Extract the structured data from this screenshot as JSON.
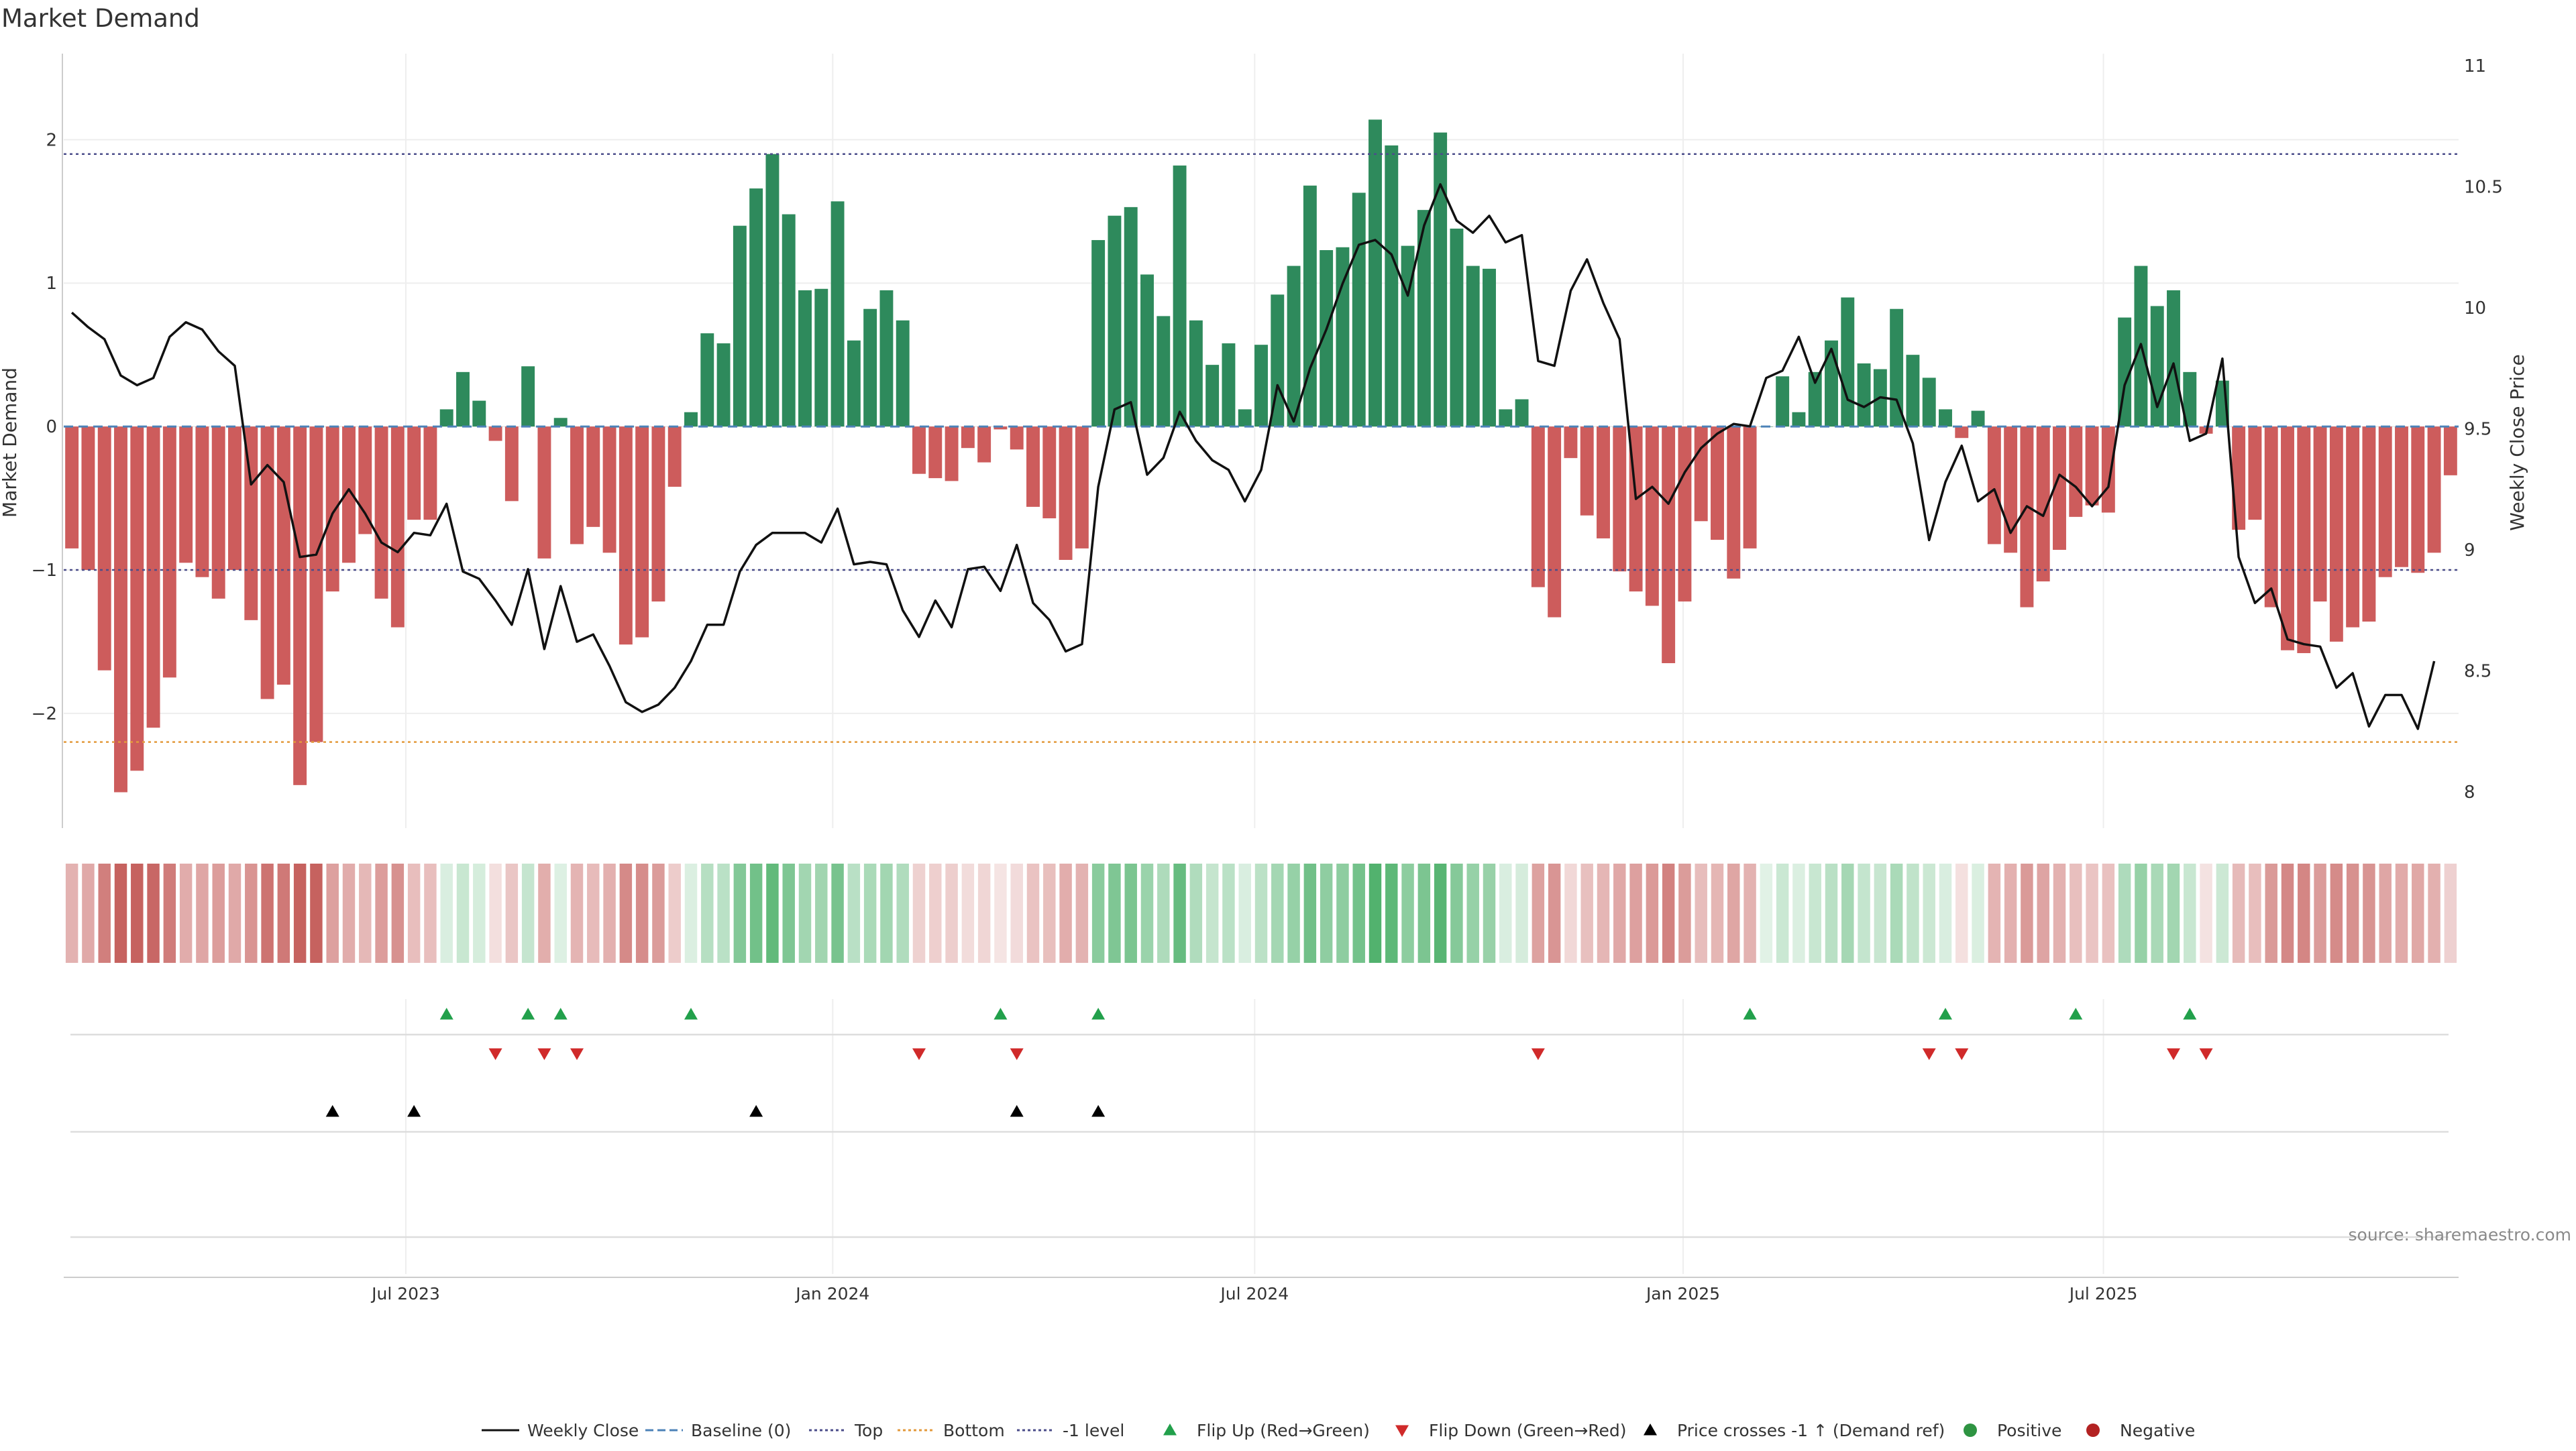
{
  "chart_data": {
    "type": "bar",
    "title": "Market Demand",
    "ylabel": "Market Demand",
    "y2label": "Weekly Close Price",
    "source": "source: sharemaestro.com",
    "ylim": [
      -2.8,
      2.6
    ],
    "y2lim": [
      7.85,
      11.05
    ],
    "yticks": [
      2,
      1,
      0,
      -1,
      -2
    ],
    "ytick_labels": [
      "2",
      "1",
      "0",
      "−1",
      "−2"
    ],
    "y2ticks": [
      11,
      10.5,
      10,
      9.5,
      9,
      8.5,
      8
    ],
    "y2tick_labels": [
      "11",
      "10.5",
      "10",
      "9.5",
      "9",
      "8.5",
      "8"
    ],
    "xticks": [
      {
        "week": 20.5,
        "label": "Jul 2023"
      },
      {
        "week": 46.7,
        "label": "Jan 2024"
      },
      {
        "week": 72.6,
        "label": "Jul 2024"
      },
      {
        "week": 98.9,
        "label": "Jan 2025"
      },
      {
        "week": 124.7,
        "label": "Jul 2025"
      }
    ],
    "reference_lines": {
      "top": 1.9,
      "bottom": -2.2,
      "minus_one": -1.0,
      "baseline": 0
    },
    "demand": [
      -0.85,
      -1.0,
      -1.7,
      -2.55,
      -2.4,
      -2.1,
      -1.75,
      -0.95,
      -1.05,
      -1.2,
      -1.0,
      -1.35,
      -1.9,
      -1.8,
      -2.5,
      -2.2,
      -1.15,
      -0.95,
      -0.75,
      -1.2,
      -1.4,
      -0.65,
      -0.65,
      0.12,
      0.38,
      0.18,
      -0.1,
      -0.52,
      0.42,
      -0.92,
      0.06,
      -0.82,
      -0.7,
      -0.88,
      -1.52,
      -1.47,
      -1.22,
      -0.42,
      0.1,
      0.65,
      0.58,
      1.4,
      1.66,
      1.9,
      1.48,
      0.95,
      0.96,
      1.57,
      0.6,
      0.82,
      0.95,
      0.74,
      -0.33,
      -0.36,
      -0.38,
      -0.15,
      -0.25,
      -0.02,
      -0.16,
      -0.56,
      -0.64,
      -0.93,
      -0.85,
      1.3,
      1.47,
      1.53,
      1.06,
      0.77,
      1.82,
      0.74,
      0.43,
      0.58,
      0.12,
      0.57,
      0.92,
      1.12,
      1.68,
      1.23,
      1.25,
      1.63,
      2.14,
      1.96,
      1.26,
      1.51,
      2.05,
      1.38,
      1.12,
      1.1,
      0.12,
      0.19,
      -1.12,
      -1.33,
      -0.22,
      -0.62,
      -0.78,
      -1.01,
      -1.15,
      -1.25,
      -1.65,
      -1.22,
      -0.66,
      -0.79,
      -1.06,
      -0.85,
      0.0,
      0.35,
      0.1,
      0.38,
      0.6,
      0.9,
      0.44,
      0.4,
      0.82,
      0.5,
      0.34,
      0.12,
      -0.08,
      0.11,
      -0.82,
      -0.88,
      -1.26,
      -1.08,
      -0.86,
      -0.63,
      -0.55,
      -0.6,
      0.76,
      1.12,
      0.84,
      0.95,
      0.38,
      -0.05,
      0.32,
      -0.72,
      -0.65,
      -1.26,
      -1.56,
      -1.58,
      -1.22,
      -1.5,
      -1.4,
      -1.36,
      -1.05,
      -0.98,
      -1.02,
      -0.88,
      -0.34
    ],
    "price": [
      9.98,
      9.92,
      9.87,
      9.72,
      9.68,
      9.71,
      9.88,
      9.94,
      9.91,
      9.82,
      9.76,
      9.27,
      9.35,
      9.28,
      8.97,
      8.98,
      9.15,
      9.25,
      9.15,
      9.03,
      8.99,
      9.07,
      9.06,
      9.19,
      8.91,
      8.88,
      8.79,
      8.69,
      8.92,
      8.59,
      8.85,
      8.62,
      8.65,
      8.52,
      8.37,
      8.33,
      8.36,
      8.43,
      8.54,
      8.69,
      8.69,
      8.91,
      9.02,
      9.07,
      9.07,
      9.07,
      9.03,
      9.17,
      8.94,
      8.95,
      8.94,
      8.75,
      8.64,
      8.79,
      8.68,
      8.92,
      8.93,
      8.83,
      9.02,
      8.78,
      8.71,
      8.58,
      8.61,
      9.26,
      9.58,
      9.61,
      9.31,
      9.38,
      9.57,
      9.45,
      9.37,
      9.33,
      9.2,
      9.33,
      9.68,
      9.53,
      9.75,
      9.91,
      10.1,
      10.26,
      10.28,
      10.22,
      10.05,
      10.34,
      10.51,
      10.36,
      10.31,
      10.38,
      10.27,
      10.3,
      9.78,
      9.76,
      10.07,
      10.2,
      10.02,
      9.87,
      9.21,
      9.26,
      9.19,
      9.32,
      9.42,
      9.48,
      9.52,
      9.51,
      9.71,
      9.74,
      9.88,
      9.69,
      9.83,
      9.62,
      9.59,
      9.63,
      9.62,
      9.44,
      9.04,
      9.28,
      9.43,
      9.2,
      9.25,
      9.07,
      9.18,
      9.14,
      9.31,
      9.26,
      9.18,
      9.26,
      9.68,
      9.85,
      9.59,
      9.77,
      9.45,
      9.48,
      9.79,
      8.97,
      8.78,
      8.84,
      8.63,
      8.61,
      8.6,
      8.43,
      8.49,
      8.27,
      8.4,
      8.4,
      8.26,
      8.54
    ],
    "flip_up": [
      23,
      28,
      30,
      38,
      57,
      63,
      103,
      115,
      123,
      130
    ],
    "flip_down": [
      26,
      29,
      31,
      52,
      58,
      90,
      114,
      116,
      129,
      131
    ],
    "price_cross_up": [
      16,
      21,
      42,
      58,
      63
    ],
    "legend": [
      {
        "label": "Weekly Close",
        "kind": "solid-line",
        "color": "#111111"
      },
      {
        "label": "Baseline (0)",
        "kind": "dashed-line",
        "color": "#4c82b8"
      },
      {
        "label": "Top",
        "kind": "dotted-line",
        "color": "#4b4d8a"
      },
      {
        "label": "Bottom",
        "kind": "dotted-line",
        "color": "#e39a3c"
      },
      {
        "label": "-1 level",
        "kind": "dotted-line",
        "color": "#4b4d8a"
      },
      {
        "label": "Flip Up (Red→Green)",
        "kind": "triangle-up",
        "color": "#22a04b"
      },
      {
        "label": "Flip Down (Green→Red)",
        "kind": "triangle-down",
        "color": "#d02a2a"
      },
      {
        "label": "Price crosses -1 ↑ (Demand ref)",
        "kind": "triangle-up",
        "color": "#000000"
      },
      {
        "label": "Positive",
        "kind": "dot",
        "color": "#2e9442"
      },
      {
        "label": "Negative",
        "kind": "dot",
        "color": "#b32222"
      }
    ]
  },
  "colors": {
    "positive_bar": "#2e8a5c",
    "negative_bar": "#cd5c5c",
    "price_line": "#111111",
    "baseline": "#4c82b8",
    "top_line": "#4b4d8a",
    "bottom_line": "#e39a3c",
    "minus_one_line": "#4b4d8a",
    "grid": "#eeeeee"
  }
}
